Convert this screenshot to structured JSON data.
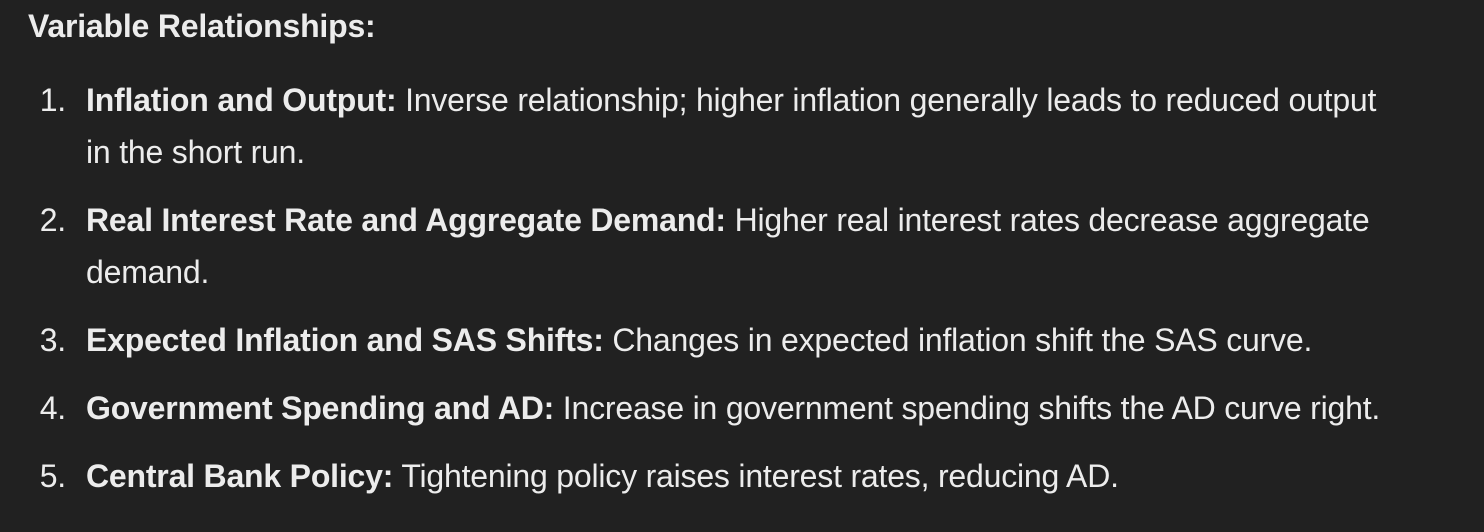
{
  "theme": {
    "background_color": "#212121",
    "text_color": "#ececec"
  },
  "heading": "Variable Relationships:",
  "list": {
    "items": [
      {
        "number": "1.",
        "lead": "Inflation and Output:",
        "lines": [
          "Inverse relationship; higher inflation generally leads to reduced output",
          "in the short run."
        ]
      },
      {
        "number": "2.",
        "lead": "Real Interest Rate and Aggregate Demand:",
        "lines": [
          "Higher real interest rates decrease aggregate",
          "demand."
        ]
      },
      {
        "number": "3.",
        "lead": "Expected Inflation and SAS Shifts:",
        "lines": [
          "Changes in expected inflation shift the SAS curve."
        ]
      },
      {
        "number": "4.",
        "lead": "Government Spending and AD:",
        "lines": [
          "Increase in government spending shifts the AD curve right."
        ]
      },
      {
        "number": "5.",
        "lead": "Central Bank Policy:",
        "lines": [
          "Tightening policy raises interest rates, reducing AD."
        ]
      }
    ]
  }
}
